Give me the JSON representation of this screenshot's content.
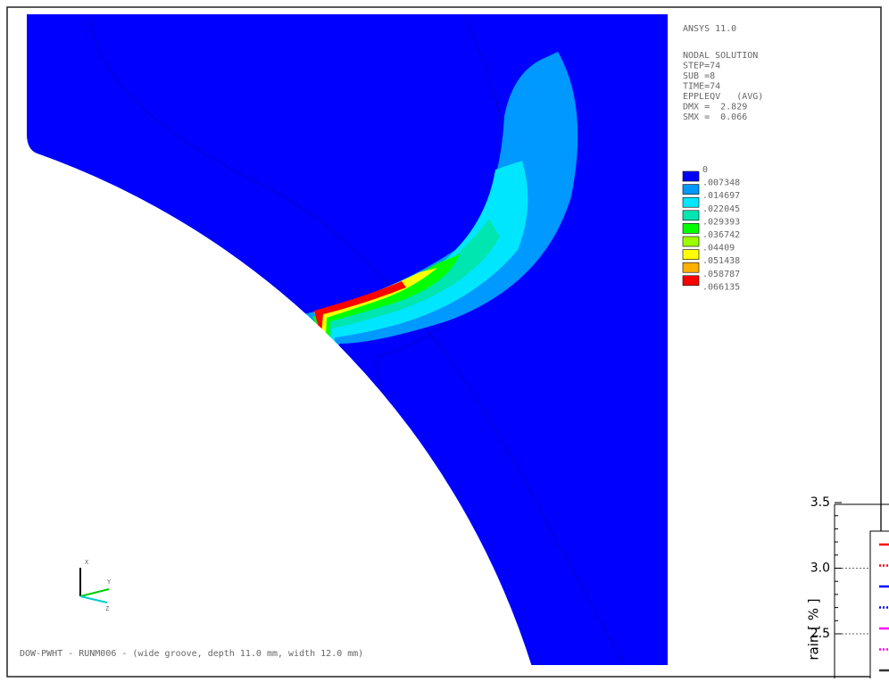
{
  "header": {
    "program": "ANSYS 11.0",
    "lines": [
      "NODAL SOLUTION",
      "STEP=74",
      "SUB =8",
      "TIME=74",
      "EPPLEQV   (AVG)",
      "DMX =  2.829",
      "SMX =  0.066"
    ]
  },
  "legend": {
    "labels": [
      "0",
      ".007348",
      ".014697",
      ".022045",
      ".029393",
      ".036742",
      ".04409",
      ".051438",
      ".058787",
      ".066135"
    ],
    "colors": [
      "#0000ff",
      "#0099ff",
      "#00e6ff",
      "#00e6b0",
      "#00ff00",
      "#9cff00",
      "#ffff00",
      "#ffb000",
      "#ff0000"
    ]
  },
  "footer": "DOW-PWHT - RUNM006 - (wide groove, depth 11.0 mm, width 12.0 mm)",
  "triad": {
    "x": "X",
    "y": "Y",
    "z": "Z"
  },
  "inset": {
    "y_axis_label": "rain [ % ]",
    "yticks": [
      "3.5",
      "3.0",
      "2.5"
    ],
    "legend_colors": [
      "#ff0000",
      "#ff0000",
      "#0000ff",
      "#0000ff",
      "#ff00ff",
      "#ff00ff",
      "#333333"
    ]
  }
}
